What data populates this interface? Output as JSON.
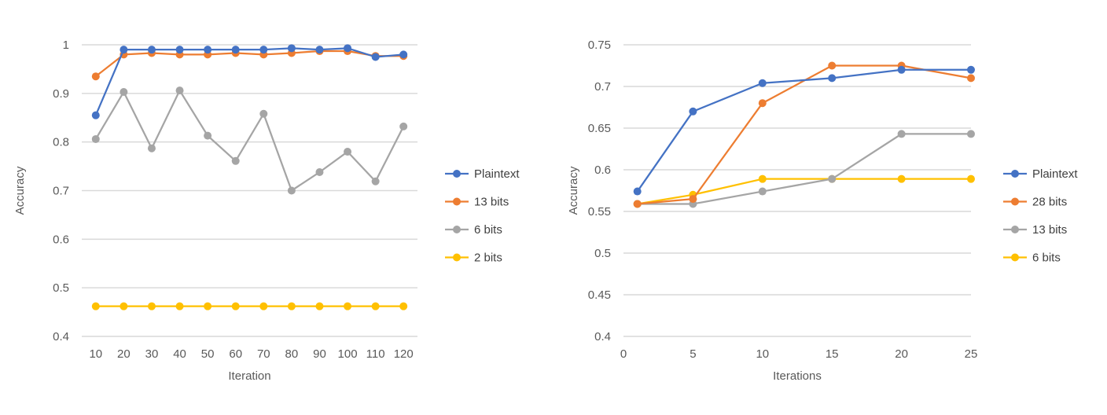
{
  "chart_data": [
    {
      "type": "line",
      "title": "",
      "xlabel": "Iteration",
      "ylabel": "Accuracy",
      "x_scale": "categorical",
      "categories": [
        "10",
        "20",
        "30",
        "40",
        "50",
        "60",
        "70",
        "80",
        "90",
        "100",
        "110",
        "120"
      ],
      "ylim": [
        0.4,
        1
      ],
      "yticks": [
        0.4,
        0.5,
        0.6,
        0.7,
        0.8,
        0.9,
        1
      ],
      "ytick_labels": [
        "0.4",
        "0.5",
        "0.6",
        "0.7",
        "0.8",
        "0.9",
        "1"
      ],
      "grid": "horizontal",
      "legend_position": "right",
      "series": [
        {
          "name": "Plaintext",
          "color": "#4472C4",
          "values": [
            0.855,
            0.99,
            0.99,
            0.99,
            0.99,
            0.99,
            0.99,
            0.993,
            0.99,
            0.993,
            0.975,
            0.98
          ]
        },
        {
          "name": "13 bits",
          "color": "#ED7D31",
          "values": [
            0.935,
            0.98,
            0.983,
            0.98,
            0.98,
            0.983,
            0.98,
            0.983,
            0.987,
            0.987,
            0.977,
            0.977
          ]
        },
        {
          "name": "6 bits",
          "color": "#A5A5A5",
          "values": [
            0.806,
            0.903,
            0.787,
            0.906,
            0.813,
            0.761,
            0.858,
            0.7,
            0.738,
            0.78,
            0.719,
            0.832
          ]
        },
        {
          "name": "2 bits",
          "color": "#FFC000",
          "values": [
            0.462,
            0.462,
            0.462,
            0.462,
            0.462,
            0.462,
            0.462,
            0.462,
            0.462,
            0.462,
            0.462,
            0.462
          ]
        }
      ]
    },
    {
      "type": "line",
      "title": "",
      "xlabel": "Iterations",
      "ylabel": "Accuracy",
      "x_scale": "linear",
      "xlim": [
        0,
        25
      ],
      "xticks": [
        0,
        5,
        10,
        15,
        20,
        25
      ],
      "ylim": [
        0.4,
        0.75
      ],
      "yticks": [
        0.4,
        0.45,
        0.5,
        0.55,
        0.6,
        0.65,
        0.7,
        0.75
      ],
      "ytick_labels": [
        "0.4",
        "0.45",
        "0.5",
        "0.55",
        "0.6",
        "0.65",
        "0.7",
        "0.75"
      ],
      "grid": "horizontal",
      "legend_position": "right",
      "x": [
        1,
        5,
        10,
        15,
        20,
        25
      ],
      "series": [
        {
          "name": "Plaintext",
          "color": "#4472C4",
          "values": [
            0.574,
            0.67,
            0.704,
            0.71,
            0.72,
            0.72
          ]
        },
        {
          "name": "28 bits",
          "color": "#ED7D31",
          "values": [
            0.559,
            0.565,
            0.68,
            0.725,
            0.725,
            0.71
          ]
        },
        {
          "name": "13 bits",
          "color": "#A5A5A5",
          "values": [
            0.559,
            0.559,
            0.574,
            0.589,
            0.643,
            0.643
          ]
        },
        {
          "name": "6 bits",
          "color": "#FFC000",
          "values": [
            0.559,
            0.57,
            0.589,
            0.589,
            0.589,
            0.589
          ]
        }
      ]
    }
  ]
}
